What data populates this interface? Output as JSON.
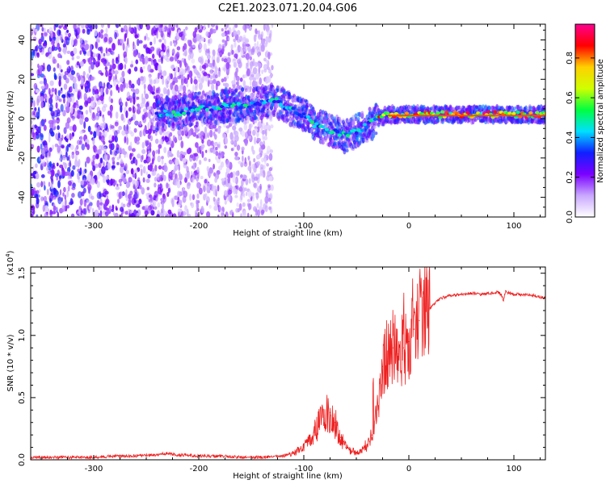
{
  "title": "C2E1.2023.071.20.04.G06",
  "chart_data": [
    {
      "type": "heatmap",
      "xlabel": "Height of straight line (km)",
      "ylabel": "Frequency (Hz)",
      "xlim": [
        -360,
        130
      ],
      "ylim": [
        -50,
        48
      ],
      "xticks": [
        -300,
        -200,
        -100,
        0,
        100
      ],
      "yticks": [
        -40,
        -20,
        0,
        20,
        40
      ],
      "colorbar": {
        "label": "Normalized spectral amplitude",
        "range": [
          0.0,
          0.97
        ],
        "ticks": [
          "0.0",
          "0.2",
          "0.4",
          "0.6",
          "0.8"
        ],
        "ticks_values": [
          0.0,
          0.2,
          0.4,
          0.6,
          0.8
        ],
        "colormap": [
          "#ffffff",
          "#c9a8ff",
          "#7a00ff",
          "#1020ff",
          "#00e0ff",
          "#00ff40",
          "#d0ff00",
          "#ffd000",
          "#ff0000",
          "#ff0090"
        ]
      },
      "signal_ridge": {
        "x": [
          -240,
          -220,
          -200,
          -180,
          -160,
          -140,
          -130,
          -120,
          -110,
          -100,
          -90,
          -80,
          -70,
          -60,
          -50,
          -40,
          -30,
          -20,
          0,
          20,
          40,
          60,
          80,
          100,
          130
        ],
        "y": [
          2,
          3,
          5,
          6,
          7,
          8,
          10,
          7,
          4,
          2,
          -3,
          -5,
          -7,
          -9,
          -6,
          -4,
          0,
          2,
          2,
          2,
          2,
          2,
          2,
          2,
          2
        ]
      },
      "noise_region_x": [
        -360,
        -130
      ]
    },
    {
      "type": "line",
      "xlabel": "Height of straight line (km)",
      "ylabel": "SNR (10 * v/v)",
      "ylabel_scale": "(x10",
      "ylabel_scale_exp": "4",
      "ylabel_scale_close": ")",
      "xlim": [
        -360,
        130
      ],
      "ylim": [
        0,
        1.55
      ],
      "xticks": [
        -300,
        -200,
        -100,
        0,
        100
      ],
      "yticks": [
        "0.0",
        "0.5",
        "1.0",
        "1.5"
      ],
      "yticks_values": [
        0.0,
        0.5,
        1.0,
        1.5
      ],
      "series": [
        {
          "color": "#ee2020",
          "x": [
            -360,
            -340,
            -320,
            -300,
            -280,
            -260,
            -240,
            -230,
            -220,
            -200,
            -180,
            -160,
            -140,
            -120,
            -110,
            -100,
            -95,
            -90,
            -85,
            -80,
            -75,
            -70,
            -65,
            -60,
            -55,
            -50,
            -45,
            -40,
            -35,
            -30,
            -25,
            -20,
            -15,
            -10,
            -5,
            0,
            5,
            10,
            15,
            20,
            25,
            30,
            40,
            50,
            60,
            70,
            80,
            85,
            88,
            90,
            92,
            95,
            100,
            110,
            120,
            130
          ],
          "y": [
            0.02,
            0.02,
            0.02,
            0.02,
            0.03,
            0.03,
            0.04,
            0.05,
            0.04,
            0.03,
            0.03,
            0.02,
            0.02,
            0.03,
            0.05,
            0.1,
            0.15,
            0.22,
            0.3,
            0.36,
            0.38,
            0.3,
            0.18,
            0.1,
            0.07,
            0.06,
            0.08,
            0.12,
            0.2,
            0.4,
            0.75,
            0.85,
            0.9,
            0.85,
            0.9,
            0.95,
            1.05,
            1.12,
            1.18,
            1.22,
            1.26,
            1.3,
            1.32,
            1.33,
            1.34,
            1.33,
            1.34,
            1.35,
            1.33,
            1.28,
            1.36,
            1.34,
            1.33,
            1.33,
            1.32,
            1.3
          ]
        }
      ]
    }
  ]
}
